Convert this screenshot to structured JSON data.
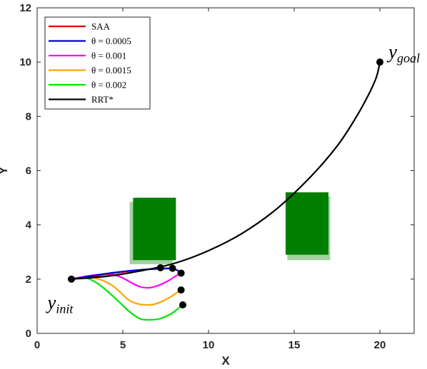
{
  "chart_data": {
    "type": "line",
    "xlabel": "X",
    "ylabel": "Y",
    "xlim": [
      0,
      22
    ],
    "ylim": [
      0,
      12
    ],
    "xticks": [
      "0",
      "5",
      "10",
      "15",
      "20"
    ],
    "yticks": [
      "0",
      "2",
      "4",
      "6",
      "8",
      "10",
      "12"
    ],
    "grid": false,
    "legend_position": "top-left",
    "colors": {
      "SAA": "#e00000",
      "theta1": "#0000dd",
      "theta2": "#ff00ff",
      "theta3": "#ffa500",
      "theta4": "#00e600",
      "rrt": "#000000",
      "obstacle": "#007f00",
      "obstacle_shadow": "#66b266"
    },
    "series": [
      {
        "name": "SAA",
        "key": "SAA",
        "x": [
          2.0,
          3.0,
          4.0,
          5.0,
          6.0,
          7.0,
          7.5,
          7.9
        ],
        "y": [
          2.0,
          2.08,
          2.18,
          2.26,
          2.34,
          2.38,
          2.4,
          2.4
        ]
      },
      {
        "name": "θ = 0.0005",
        "key": "theta1",
        "x": [
          2.0,
          3.0,
          4.0,
          5.0,
          6.0,
          7.0,
          7.5,
          7.9,
          8.2,
          8.35
        ],
        "y": [
          2.0,
          2.1,
          2.2,
          2.28,
          2.34,
          2.38,
          2.39,
          2.38,
          2.32,
          2.23
        ]
      },
      {
        "name": "θ = 0.001",
        "key": "theta2",
        "x": [
          2.0,
          3.0,
          4.0,
          4.8,
          5.4,
          6.0,
          6.5,
          7.0,
          7.6,
          8.1,
          8.4
        ],
        "y": [
          2.0,
          2.12,
          2.18,
          2.1,
          1.9,
          1.72,
          1.68,
          1.75,
          1.92,
          2.12,
          2.22
        ]
      },
      {
        "name": "θ = 0.0015",
        "key": "theta3",
        "x": [
          2.0,
          2.8,
          3.6,
          4.3,
          4.8,
          5.3,
          5.8,
          6.3,
          6.8,
          7.3,
          7.8,
          8.2,
          8.4
        ],
        "y": [
          2.0,
          2.08,
          2.0,
          1.8,
          1.55,
          1.25,
          1.1,
          1.05,
          1.07,
          1.18,
          1.35,
          1.52,
          1.6
        ]
      },
      {
        "name": "θ = 0.002",
        "key": "theta4",
        "x": [
          2.0,
          2.8,
          3.5,
          4.2,
          4.8,
          5.3,
          5.7,
          6.1,
          6.6,
          7.1,
          7.6,
          8.0,
          8.3,
          8.5
        ],
        "y": [
          2.0,
          2.05,
          1.85,
          1.5,
          1.15,
          0.85,
          0.65,
          0.52,
          0.5,
          0.53,
          0.65,
          0.8,
          0.95,
          1.05
        ]
      },
      {
        "name": "RRT*",
        "key": "rrt",
        "x": [
          2.0,
          4.0,
          6.0,
          8.0,
          10.0,
          12.0,
          14.0,
          16.0,
          17.5,
          18.5,
          19.3,
          19.8,
          20.0
        ],
        "y": [
          2.0,
          2.1,
          2.3,
          2.58,
          3.05,
          3.7,
          4.6,
          5.8,
          6.9,
          7.85,
          8.75,
          9.45,
          10.0
        ]
      }
    ],
    "markers": [
      {
        "x": 2.0,
        "y": 2.0
      },
      {
        "x": 20.0,
        "y": 10.0
      },
      {
        "x": 7.2,
        "y": 2.42
      },
      {
        "x": 7.9,
        "y": 2.4
      },
      {
        "x": 8.4,
        "y": 2.22
      },
      {
        "x": 8.4,
        "y": 1.6
      },
      {
        "x": 8.5,
        "y": 1.05
      }
    ],
    "obstacles": [
      {
        "kind": "shadow",
        "x0": 5.4,
        "x1": 7.9,
        "y0": 2.55,
        "y1": 4.85
      },
      {
        "kind": "solid",
        "x0": 5.6,
        "x1": 8.1,
        "y0": 2.7,
        "y1": 5.0
      },
      {
        "kind": "shadow",
        "x0": 14.6,
        "x1": 17.1,
        "y0": 2.7,
        "y1": 5.05
      },
      {
        "kind": "solid",
        "x0": 14.5,
        "x1": 17.0,
        "y0": 2.9,
        "y1": 5.2
      }
    ],
    "annotations": [
      {
        "key": "goal",
        "base": "y",
        "sub": "goal",
        "x": 20.5,
        "y": 10.15
      },
      {
        "key": "init",
        "base": "y",
        "sub": "init",
        "x": 0.6,
        "y": 0.9
      }
    ]
  }
}
